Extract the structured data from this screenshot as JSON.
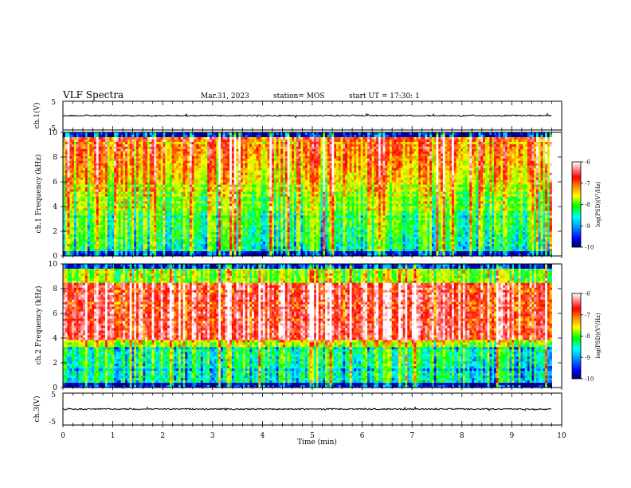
{
  "header": {
    "title": "VLF Spectra",
    "date": "Mar.31, 2023",
    "station": "station= MOS",
    "start": "start UT = 17:30: 1"
  },
  "chart_data": [
    {
      "type": "line",
      "panel": "ch1-waveform",
      "ylabel": "ch.1(V)",
      "ylim": [
        -5,
        5
      ],
      "yticks": [
        "5",
        "-5"
      ],
      "xlim": [
        0,
        10
      ],
      "approx_level": 0
    },
    {
      "type": "heatmap",
      "panel": "ch1-spectrogram",
      "ylabel": "ch.1 Frequency (kHz)",
      "ylim": [
        0,
        10
      ],
      "yticks": [
        "0",
        "2",
        "4",
        "6",
        "8",
        "10"
      ],
      "xlim": [
        0,
        9.8
      ],
      "colorbar": {
        "label": "log(PSD)(V²/Hz)",
        "range": [
          -10,
          -6
        ],
        "ticks": [
          "-6",
          "-7",
          "-8",
          "-9",
          "-10"
        ]
      }
    },
    {
      "type": "heatmap",
      "panel": "ch2-spectrogram",
      "ylabel": "ch.2 Frequency (kHz)",
      "ylim": [
        0,
        10
      ],
      "yticks": [
        "0",
        "2",
        "4",
        "6",
        "8",
        "10"
      ],
      "xlim": [
        0,
        9.8
      ],
      "colorbar": {
        "label": "log(PSD)(V²/Hz)",
        "range": [
          -10,
          -6
        ],
        "ticks": [
          "-6",
          "-7",
          "-8",
          "-9",
          "-10"
        ]
      }
    },
    {
      "type": "line",
      "panel": "ch3-waveform",
      "ylabel": "ch.3(V)",
      "ylim": [
        -5,
        5
      ],
      "yticks": [
        "5",
        "-5"
      ],
      "xlim": [
        0,
        10
      ],
      "approx_level": 0
    }
  ],
  "xaxis": {
    "label": "Time (min)",
    "ticks": [
      "0",
      "1",
      "2",
      "3",
      "4",
      "5",
      "6",
      "7",
      "8",
      "9",
      "10"
    ]
  },
  "colors": {
    "frame": "#000000",
    "colormap": [
      "#000080",
      "#0000ff",
      "#00a0ff",
      "#00ffff",
      "#00ff00",
      "#a0ff00",
      "#ffff00",
      "#ff8000",
      "#ff0000",
      "#ff8080",
      "#ffffff"
    ]
  }
}
